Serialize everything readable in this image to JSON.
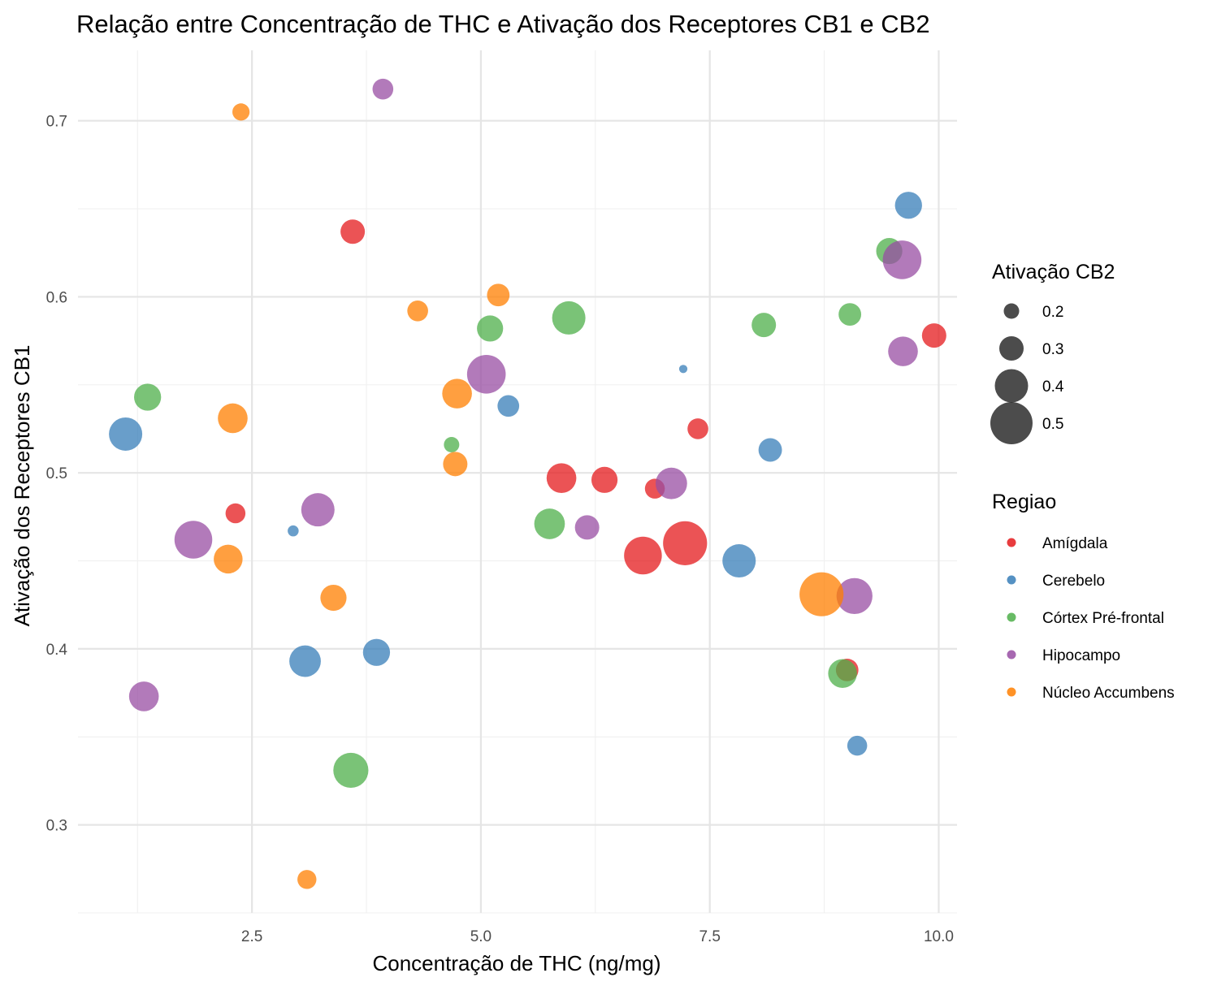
{
  "chart_data": {
    "type": "scatter",
    "title": "Relação entre Concentração de THC e Ativação dos Receptores CB1 e CB2",
    "xlabel": "Concentração de THC (ng/mg)",
    "ylabel": "Ativação dos Receptores CB1",
    "xlim": [
      0.6,
      10.2
    ],
    "ylim": [
      0.25,
      0.74
    ],
    "x_ticks": [
      2.5,
      5.0,
      7.5,
      10.0
    ],
    "x_tick_labels": [
      "2.5",
      "5.0",
      "7.5",
      "10.0"
    ],
    "y_ticks": [
      0.3,
      0.4,
      0.5,
      0.6,
      0.7
    ],
    "y_tick_labels": [
      "0.3",
      "0.4",
      "0.5",
      "0.6",
      "0.7"
    ],
    "grid": true,
    "legend_position": "right",
    "size_legend": {
      "title": "Ativação CB2",
      "entries": [
        {
          "label": "0.2",
          "value": 0.2
        },
        {
          "label": "0.3",
          "value": 0.3
        },
        {
          "label": "0.4",
          "value": 0.4
        },
        {
          "label": "0.5",
          "value": 0.5
        }
      ]
    },
    "color_legend": {
      "title": "Regiao",
      "entries": [
        {
          "label": "Amígdala",
          "color": "#E41A1C"
        },
        {
          "label": "Cerebelo",
          "color": "#377EB8"
        },
        {
          "label": "Córtex Pré-frontal",
          "color": "#4DAF4A"
        },
        {
          "label": "Hipocampo",
          "color": "#984EA3"
        },
        {
          "label": "Núcleo Accumbens",
          "color": "#FF7F00"
        }
      ]
    },
    "series": [
      {
        "name": "Amígdala",
        "color": "#E41A1C",
        "points": [
          {
            "x": 3.6,
            "y": 0.637,
            "cb2": 0.3
          },
          {
            "x": 2.32,
            "y": 0.477,
            "cb2": 0.25
          },
          {
            "x": 5.88,
            "y": 0.497,
            "cb2": 0.36
          },
          {
            "x": 6.35,
            "y": 0.496,
            "cb2": 0.32
          },
          {
            "x": 6.9,
            "y": 0.491,
            "cb2": 0.25
          },
          {
            "x": 7.37,
            "y": 0.525,
            "cb2": 0.26
          },
          {
            "x": 6.77,
            "y": 0.453,
            "cb2": 0.45
          },
          {
            "x": 7.23,
            "y": 0.46,
            "cb2": 0.52
          },
          {
            "x": 9.95,
            "y": 0.578,
            "cb2": 0.3
          },
          {
            "x": 9.0,
            "y": 0.388,
            "cb2": 0.28
          }
        ]
      },
      {
        "name": "Cerebelo",
        "color": "#377EB8",
        "points": [
          {
            "x": 1.12,
            "y": 0.522,
            "cb2": 0.4
          },
          {
            "x": 2.95,
            "y": 0.467,
            "cb2": 0.15
          },
          {
            "x": 3.08,
            "y": 0.393,
            "cb2": 0.38
          },
          {
            "x": 3.86,
            "y": 0.398,
            "cb2": 0.33
          },
          {
            "x": 5.3,
            "y": 0.538,
            "cb2": 0.27
          },
          {
            "x": 7.21,
            "y": 0.559,
            "cb2": 0.12
          },
          {
            "x": 7.82,
            "y": 0.45,
            "cb2": 0.4
          },
          {
            "x": 8.16,
            "y": 0.513,
            "cb2": 0.29
          },
          {
            "x": 9.67,
            "y": 0.652,
            "cb2": 0.33
          },
          {
            "x": 9.11,
            "y": 0.345,
            "cb2": 0.25
          }
        ]
      },
      {
        "name": "Córtex Pré-frontal",
        "color": "#4DAF4A",
        "points": [
          {
            "x": 1.36,
            "y": 0.543,
            "cb2": 0.33
          },
          {
            "x": 3.58,
            "y": 0.331,
            "cb2": 0.42
          },
          {
            "x": 4.68,
            "y": 0.516,
            "cb2": 0.2
          },
          {
            "x": 5.1,
            "y": 0.582,
            "cb2": 0.32
          },
          {
            "x": 5.96,
            "y": 0.588,
            "cb2": 0.4
          },
          {
            "x": 5.75,
            "y": 0.471,
            "cb2": 0.37
          },
          {
            "x": 8.09,
            "y": 0.584,
            "cb2": 0.3
          },
          {
            "x": 9.03,
            "y": 0.59,
            "cb2": 0.28
          },
          {
            "x": 9.46,
            "y": 0.626,
            "cb2": 0.32
          },
          {
            "x": 8.95,
            "y": 0.386,
            "cb2": 0.35
          }
        ]
      },
      {
        "name": "Hipocampo",
        "color": "#984EA3",
        "points": [
          {
            "x": 3.93,
            "y": 0.718,
            "cb2": 0.26
          },
          {
            "x": 1.32,
            "y": 0.373,
            "cb2": 0.36
          },
          {
            "x": 1.86,
            "y": 0.462,
            "cb2": 0.45
          },
          {
            "x": 3.22,
            "y": 0.479,
            "cb2": 0.4
          },
          {
            "x": 5.06,
            "y": 0.556,
            "cb2": 0.46
          },
          {
            "x": 6.16,
            "y": 0.469,
            "cb2": 0.3
          },
          {
            "x": 7.08,
            "y": 0.494,
            "cb2": 0.38
          },
          {
            "x": 9.6,
            "y": 0.621,
            "cb2": 0.46
          },
          {
            "x": 9.61,
            "y": 0.569,
            "cb2": 0.36
          },
          {
            "x": 9.08,
            "y": 0.43,
            "cb2": 0.43
          }
        ]
      },
      {
        "name": "Núcleo Accumbens",
        "color": "#FF7F00",
        "points": [
          {
            "x": 2.38,
            "y": 0.705,
            "cb2": 0.22
          },
          {
            "x": 2.29,
            "y": 0.531,
            "cb2": 0.36
          },
          {
            "x": 2.24,
            "y": 0.451,
            "cb2": 0.35
          },
          {
            "x": 3.39,
            "y": 0.429,
            "cb2": 0.32
          },
          {
            "x": 3.1,
            "y": 0.269,
            "cb2": 0.24
          },
          {
            "x": 4.31,
            "y": 0.592,
            "cb2": 0.26
          },
          {
            "x": 4.74,
            "y": 0.545,
            "cb2": 0.36
          },
          {
            "x": 4.72,
            "y": 0.505,
            "cb2": 0.3
          },
          {
            "x": 5.19,
            "y": 0.601,
            "cb2": 0.28
          },
          {
            "x": 8.72,
            "y": 0.431,
            "cb2": 0.52
          }
        ]
      }
    ]
  }
}
